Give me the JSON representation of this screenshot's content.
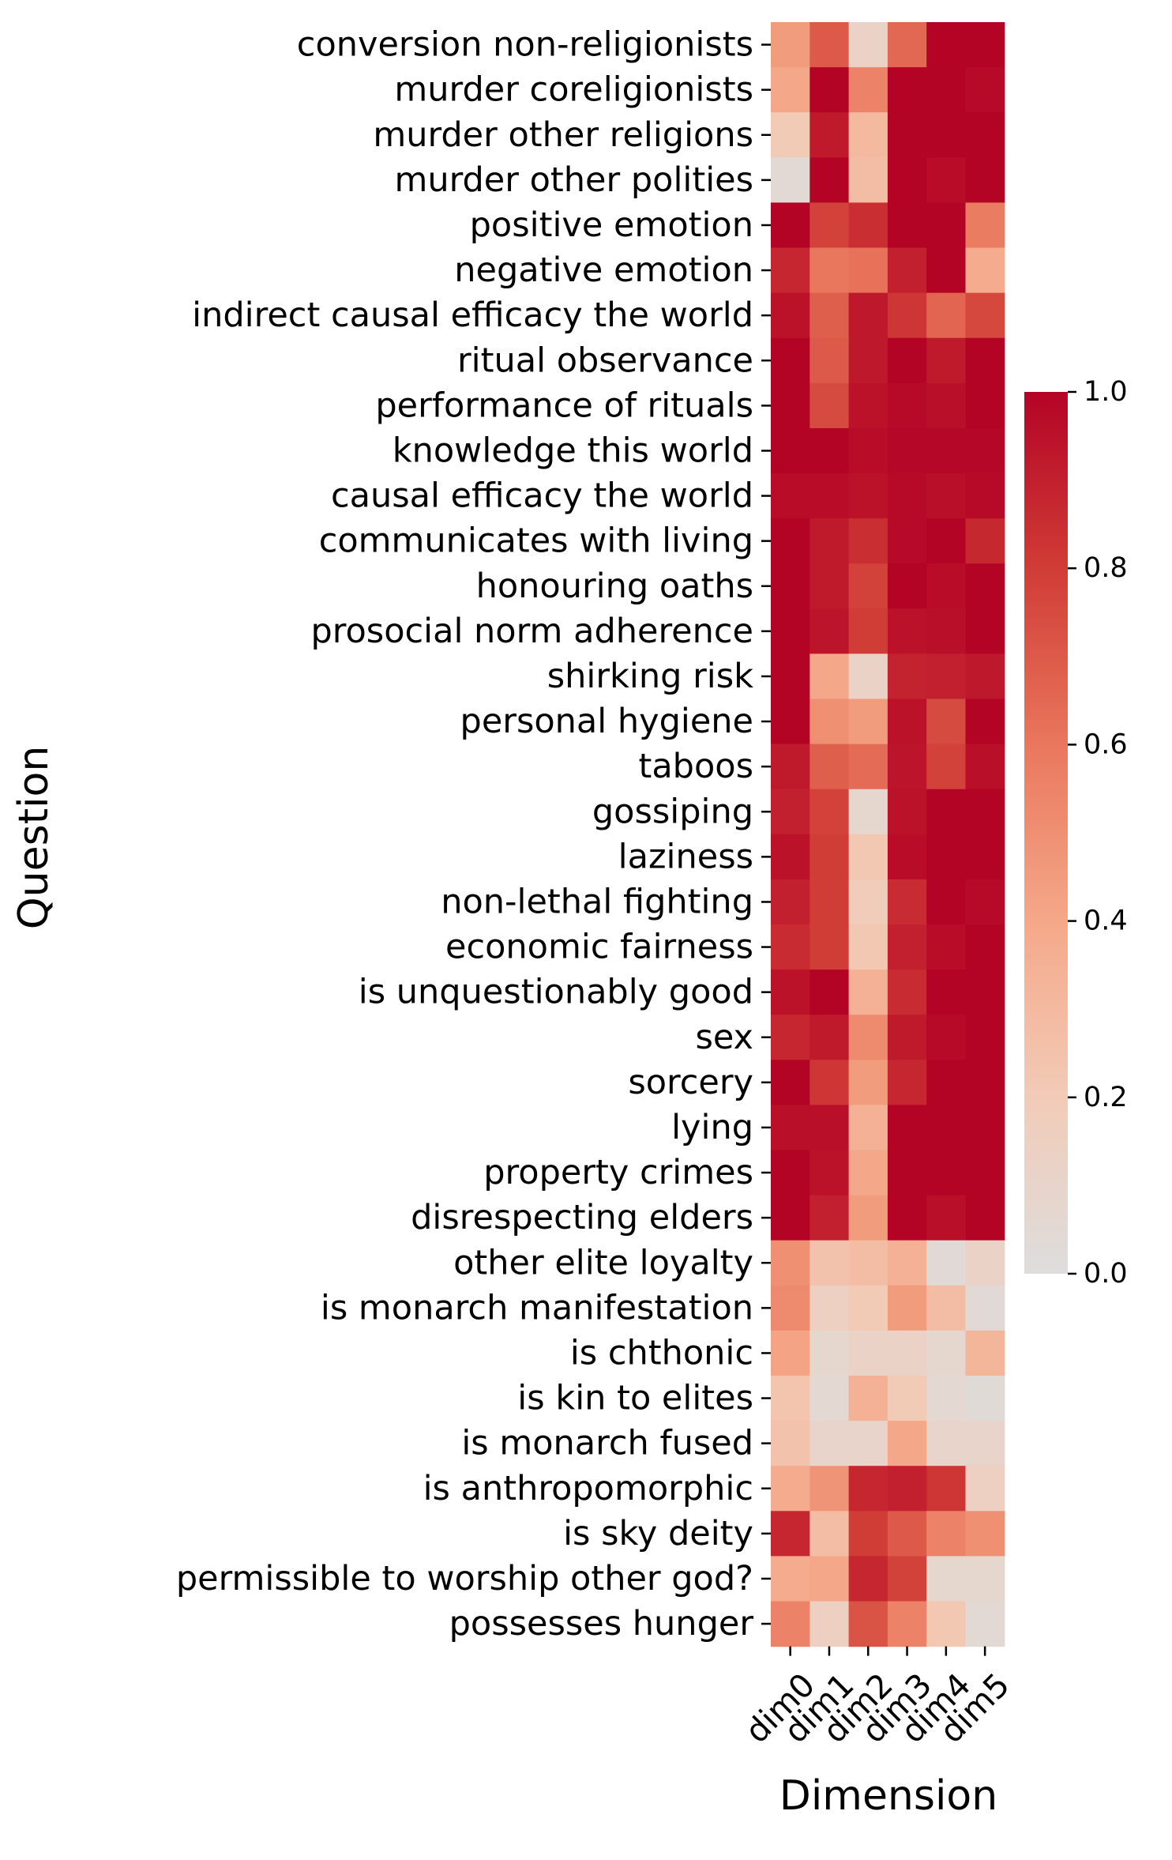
{
  "chart_data": {
    "type": "heatmap",
    "xlabel": "Dimension",
    "ylabel": "Question",
    "x": [
      "dim0",
      "dim1",
      "dim2",
      "dim3",
      "dim4",
      "dim5"
    ],
    "y": [
      "conversion non-religionists",
      "murder coreligionists",
      "murder other religions",
      "murder other polities",
      "positive emotion",
      "negative emotion",
      "indirect causal efficacy the world",
      "ritual observance",
      "performance of rituals",
      "knowledge this world",
      "causal efficacy the world",
      "communicates with living",
      "honouring oaths",
      "prosocial norm adherence",
      "shirking risk",
      "personal hygiene",
      "taboos",
      "gossiping",
      "laziness",
      "non-lethal fighting",
      "economic fairness",
      "is unquestionably good",
      "sex",
      "sorcery",
      "lying",
      "property crimes",
      "disrespecting elders",
      "other elite loyalty",
      "is monarch manifestation",
      "is chthonic",
      "is kin to elites",
      "is monarch fused",
      "is anthropomorphic",
      "is sky deity",
      "permissible to worship other god?",
      "possesses hunger"
    ],
    "values": [
      [
        0.45,
        0.7,
        0.12,
        0.65,
        1.0,
        1.0
      ],
      [
        0.4,
        1.0,
        0.55,
        1.0,
        1.0,
        0.98
      ],
      [
        0.2,
        0.92,
        0.3,
        1.0,
        1.0,
        1.0
      ],
      [
        0.05,
        1.0,
        0.28,
        1.0,
        0.97,
        1.0
      ],
      [
        1.0,
        0.78,
        0.85,
        1.0,
        1.0,
        0.58
      ],
      [
        0.88,
        0.6,
        0.62,
        0.9,
        1.0,
        0.38
      ],
      [
        0.95,
        0.68,
        0.93,
        0.82,
        0.66,
        0.76
      ],
      [
        1.0,
        0.7,
        0.93,
        1.0,
        0.92,
        1.0
      ],
      [
        1.0,
        0.75,
        0.95,
        0.98,
        0.96,
        1.0
      ],
      [
        1.0,
        1.0,
        0.97,
        0.99,
        0.99,
        0.99
      ],
      [
        0.97,
        0.97,
        0.95,
        0.98,
        0.96,
        0.98
      ],
      [
        1.0,
        0.92,
        0.85,
        0.98,
        1.0,
        0.87
      ],
      [
        1.0,
        0.92,
        0.78,
        1.0,
        0.97,
        1.0
      ],
      [
        1.0,
        0.94,
        0.8,
        0.95,
        0.96,
        1.0
      ],
      [
        1.0,
        0.4,
        0.12,
        0.89,
        0.9,
        0.93
      ],
      [
        1.0,
        0.5,
        0.45,
        0.95,
        0.75,
        1.0
      ],
      [
        0.92,
        0.68,
        0.64,
        0.94,
        0.78,
        0.96
      ],
      [
        0.9,
        0.78,
        0.08,
        0.95,
        1.0,
        1.0
      ],
      [
        0.95,
        0.8,
        0.22,
        0.97,
        1.0,
        1.0
      ],
      [
        0.9,
        0.8,
        0.18,
        0.86,
        1.0,
        0.98
      ],
      [
        0.86,
        0.8,
        0.22,
        0.9,
        0.97,
        1.0
      ],
      [
        0.95,
        1.0,
        0.35,
        0.86,
        1.0,
        1.0
      ],
      [
        0.88,
        0.92,
        0.52,
        0.92,
        0.98,
        1.0
      ],
      [
        1.0,
        0.82,
        0.45,
        0.88,
        1.0,
        1.0
      ],
      [
        0.96,
        0.96,
        0.35,
        1.0,
        1.0,
        1.0
      ],
      [
        1.0,
        0.95,
        0.4,
        1.0,
        1.0,
        1.0
      ],
      [
        1.0,
        0.9,
        0.45,
        1.0,
        0.96,
        1.0
      ],
      [
        0.5,
        0.25,
        0.28,
        0.35,
        0.04,
        0.12
      ],
      [
        0.52,
        0.15,
        0.2,
        0.45,
        0.28,
        0.04
      ],
      [
        0.42,
        0.08,
        0.12,
        0.12,
        0.08,
        0.32
      ],
      [
        0.24,
        0.06,
        0.35,
        0.2,
        0.06,
        0.03
      ],
      [
        0.25,
        0.1,
        0.1,
        0.4,
        0.1,
        0.1
      ],
      [
        0.38,
        0.48,
        0.88,
        0.9,
        0.82,
        0.15
      ],
      [
        0.88,
        0.28,
        0.8,
        0.7,
        0.55,
        0.5
      ],
      [
        0.38,
        0.4,
        0.88,
        0.78,
        0.08,
        0.08
      ],
      [
        0.55,
        0.15,
        0.72,
        0.55,
        0.22,
        0.05
      ]
    ],
    "zlim": [
      0,
      1
    ],
    "colormap": "coolwarm-upper (light grey to dark red)",
    "colorbar": {
      "ticks": [
        "0.0",
        "0.2",
        "0.4",
        "0.6",
        "0.8",
        "1.0"
      ],
      "tick_values": [
        0,
        0.2,
        0.4,
        0.6,
        0.8,
        1.0
      ]
    },
    "colors": {
      "low": "#dddddd",
      "mid": "#f3a88a",
      "high": "#b40426"
    }
  }
}
